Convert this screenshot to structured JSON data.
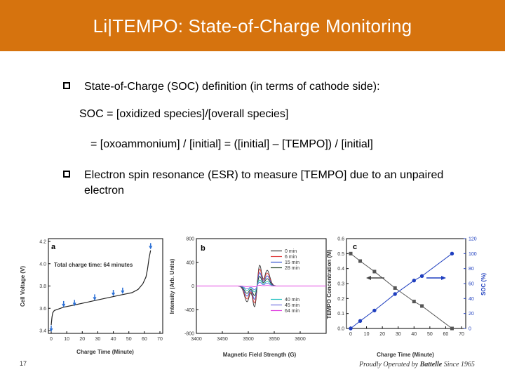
{
  "slide": {
    "title": "Li|TEMPO: State-of-Charge Monitoring",
    "bullet1": "State-of-Charge (SOC) definition (in terms of cathode side):",
    "equation1": "SOC = [oxidized species]/[overall species]",
    "equation2": "= [oxoammonium] / [initial] = ([initial] – [TEMPO]) / [initial]",
    "bullet2": "Electron spin resonance (ESR) to measure [TEMPO] due to an unpaired electron",
    "page_number": "17",
    "footer_prefix": "Proudly Operated by ",
    "footer_brand": "Battelle",
    "footer_suffix": " Since 1965"
  },
  "colors": {
    "header": "#D6730E",
    "tempo_series": "#555555",
    "soc_series": "#1f3fbf"
  },
  "chart_data": [
    {
      "type": "line",
      "panel": "a",
      "annotation": "Total charge time: 64 minutes",
      "xlabel": "Charge Time (Minute)",
      "ylabel": "Cell Voltage (V)",
      "xlim": [
        0,
        70
      ],
      "ylim": [
        3.4,
        4.2
      ],
      "xticks": [
        "0",
        "10",
        "20",
        "30",
        "40",
        "50",
        "60",
        "70"
      ],
      "yticks": [
        "3.4",
        "3.6",
        "3.8",
        "4.0",
        "4.2"
      ],
      "x": [
        0,
        0.5,
        1,
        2,
        4,
        8,
        15,
        25,
        35,
        45,
        52,
        56,
        59,
        61,
        62,
        63,
        64
      ],
      "y": [
        3.45,
        3.52,
        3.56,
        3.58,
        3.59,
        3.61,
        3.63,
        3.66,
        3.69,
        3.72,
        3.74,
        3.77,
        3.82,
        3.88,
        3.95,
        4.05,
        4.12
      ],
      "marker_x": [
        0,
        8,
        15,
        28,
        40,
        46,
        64
      ],
      "marker_y": [
        3.42,
        3.64,
        3.65,
        3.7,
        3.74,
        3.76,
        4.16
      ]
    },
    {
      "type": "line",
      "panel": "b",
      "xlabel": "Magnetic Field Strength (G)",
      "ylabel": "Intensity (Arb. Units)",
      "xlim": [
        3400,
        3650
      ],
      "ylim": [
        -800,
        800
      ],
      "xticks": [
        "3400",
        "3450",
        "3500",
        "3550",
        "3600"
      ],
      "yticks": [
        "-800",
        "-400",
        "0",
        "400",
        "800"
      ],
      "series": [
        {
          "name": "0 min",
          "color": "#333333",
          "amp": 560
        },
        {
          "name": "6 min",
          "color": "#e04040",
          "amp": 460
        },
        {
          "name": "15 min",
          "color": "#3050d0",
          "amp": 360
        },
        {
          "name": "28 min",
          "color": "#204020",
          "amp": 260
        },
        {
          "name": "40 min",
          "color": "#20c0c0",
          "amp": 160
        },
        {
          "name": "45 min",
          "color": "#7070e0",
          "amp": 100
        },
        {
          "name": "64 min",
          "color": "#e040e0",
          "amp": 20
        }
      ]
    },
    {
      "type": "line",
      "panel": "c",
      "xlabel": "Charge Time (Minute)",
      "ylabel": "TEMPO Concentration (M)",
      "y2label": "SOC (%)",
      "xlim": [
        0,
        70
      ],
      "ylim": [
        0.0,
        0.6
      ],
      "y2lim": [
        0,
        120
      ],
      "xticks": [
        "0",
        "10",
        "20",
        "30",
        "40",
        "50",
        "60",
        "70"
      ],
      "yticks": [
        "0.0",
        "0.1",
        "0.2",
        "0.3",
        "0.4",
        "0.5",
        "0.6"
      ],
      "y2ticks": [
        "0",
        "20",
        "40",
        "60",
        "80",
        "100",
        "120"
      ],
      "series": [
        {
          "name": "TEMPO Concentration",
          "x": [
            0,
            6,
            15,
            28,
            40,
            45,
            64
          ],
          "y": [
            0.5,
            0.45,
            0.38,
            0.27,
            0.18,
            0.15,
            0.0
          ]
        },
        {
          "name": "SOC",
          "axis": "right",
          "x": [
            0,
            6,
            15,
            28,
            40,
            45,
            64
          ],
          "y": [
            0,
            10,
            24,
            46,
            64,
            70,
            100
          ]
        }
      ]
    }
  ]
}
